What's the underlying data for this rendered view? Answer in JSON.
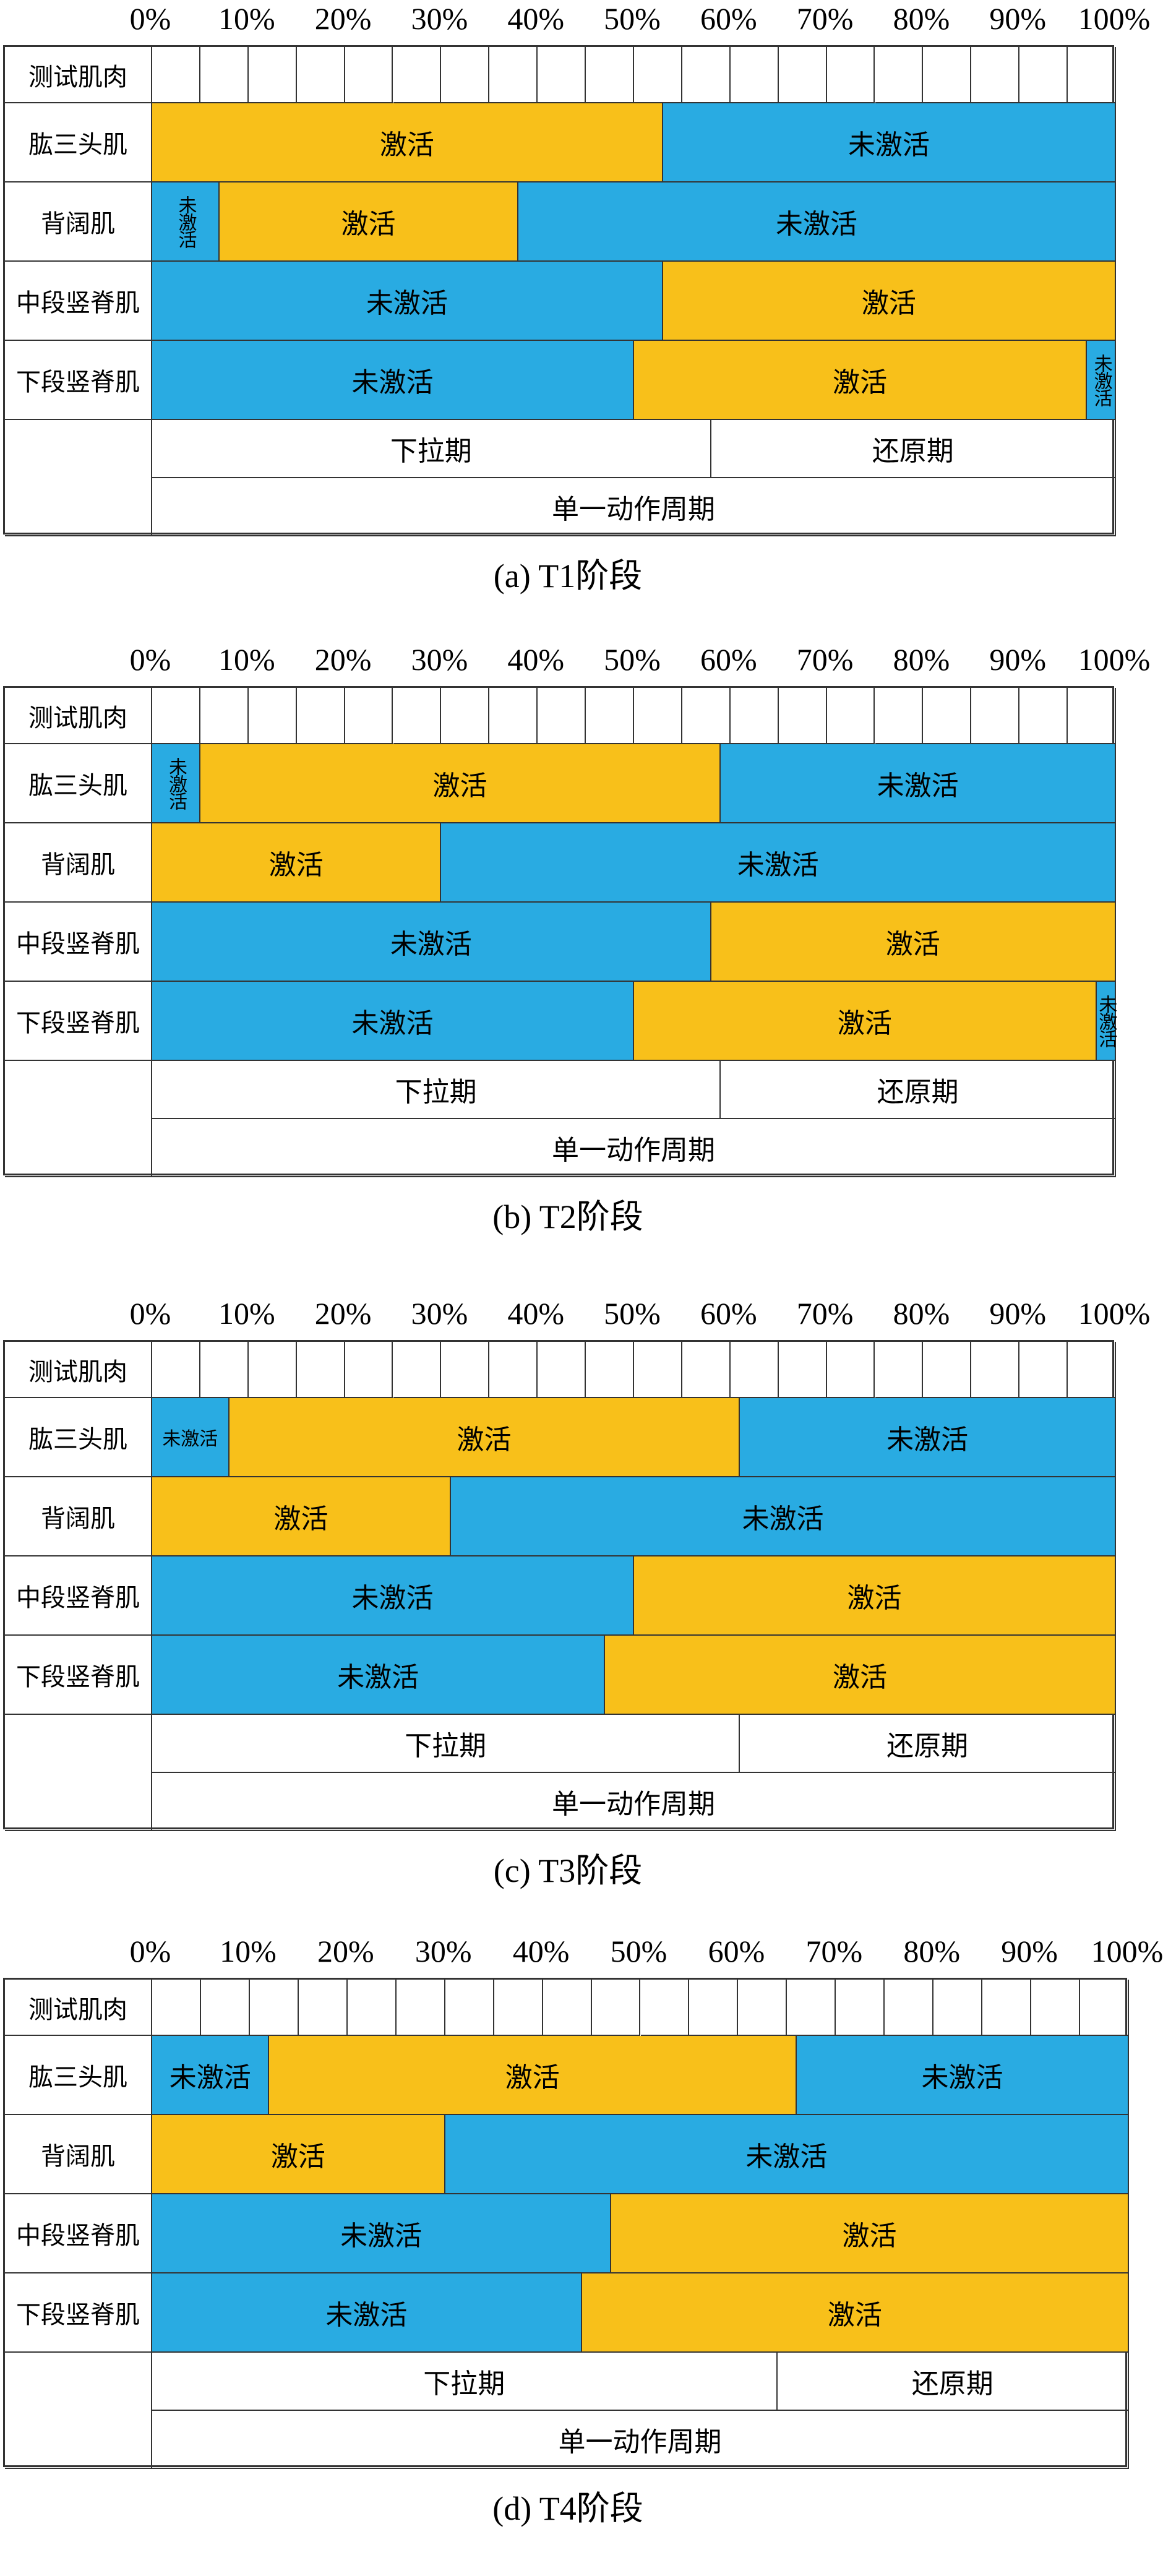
{
  "chart_data": [
    {
      "type": "table",
      "title": "(a) T1阶段",
      "header_label": "测试肌肉",
      "x_ticks": [
        "0%",
        "10%",
        "20%",
        "30%",
        "40%",
        "50%",
        "60%",
        "70%",
        "80%",
        "90%",
        "100%"
      ],
      "rows": [
        {
          "muscle": "肱三头肌",
          "segments": [
            {
              "state": "激活",
              "start": 0,
              "end": 53
            },
            {
              "state": "未激活",
              "start": 53,
              "end": 100
            }
          ]
        },
        {
          "muscle": "背阔肌",
          "segments": [
            {
              "state": "未激活",
              "start": 0,
              "end": 7
            },
            {
              "state": "激活",
              "start": 7,
              "end": 38
            },
            {
              "state": "未激活",
              "start": 38,
              "end": 100
            }
          ]
        },
        {
          "muscle": "中段竖脊肌",
          "segments": [
            {
              "state": "未激活",
              "start": 0,
              "end": 53
            },
            {
              "state": "激活",
              "start": 53,
              "end": 100
            }
          ]
        },
        {
          "muscle": "下段竖脊肌",
          "segments": [
            {
              "state": "未激活",
              "start": 0,
              "end": 50
            },
            {
              "state": "激活",
              "start": 50,
              "end": 97
            },
            {
              "state": "未激活",
              "start": 97,
              "end": 100
            }
          ]
        }
      ],
      "phases": [
        {
          "label": "下拉期",
          "start": 0,
          "end": 58
        },
        {
          "label": "还原期",
          "start": 58,
          "end": 100
        }
      ],
      "cycle_label": "单一动作周期"
    },
    {
      "type": "table",
      "title": "(b) T2阶段",
      "header_label": "测试肌肉",
      "x_ticks": [
        "0%",
        "10%",
        "20%",
        "30%",
        "40%",
        "50%",
        "60%",
        "70%",
        "80%",
        "90%",
        "100%"
      ],
      "rows": [
        {
          "muscle": "肱三头肌",
          "segments": [
            {
              "state": "未激活",
              "start": 0,
              "end": 5
            },
            {
              "state": "激活",
              "start": 5,
              "end": 59
            },
            {
              "state": "未激活",
              "start": 59,
              "end": 100
            }
          ]
        },
        {
          "muscle": "背阔肌",
          "segments": [
            {
              "state": "激活",
              "start": 0,
              "end": 30
            },
            {
              "state": "未激活",
              "start": 30,
              "end": 100
            }
          ]
        },
        {
          "muscle": "中段竖脊肌",
          "segments": [
            {
              "state": "未激活",
              "start": 0,
              "end": 58
            },
            {
              "state": "激活",
              "start": 58,
              "end": 100
            }
          ]
        },
        {
          "muscle": "下段竖脊肌",
          "segments": [
            {
              "state": "未激活",
              "start": 0,
              "end": 50
            },
            {
              "state": "激活",
              "start": 50,
              "end": 98
            },
            {
              "state": "未激活",
              "start": 98,
              "end": 100
            }
          ]
        }
      ],
      "phases": [
        {
          "label": "下拉期",
          "start": 0,
          "end": 59
        },
        {
          "label": "还原期",
          "start": 59,
          "end": 100
        }
      ],
      "cycle_label": "单一动作周期"
    },
    {
      "type": "table",
      "title": "(c) T3阶段",
      "header_label": "测试肌肉",
      "x_ticks": [
        "0%",
        "10%",
        "20%",
        "30%",
        "40%",
        "50%",
        "60%",
        "70%",
        "80%",
        "90%",
        "100%"
      ],
      "rows": [
        {
          "muscle": "肱三头肌",
          "segments": [
            {
              "state": "未激活",
              "start": 0,
              "end": 8
            },
            {
              "state": "激活",
              "start": 8,
              "end": 61
            },
            {
              "state": "未激活",
              "start": 61,
              "end": 100
            }
          ]
        },
        {
          "muscle": "背阔肌",
          "segments": [
            {
              "state": "激活",
              "start": 0,
              "end": 31
            },
            {
              "state": "未激活",
              "start": 31,
              "end": 100
            }
          ]
        },
        {
          "muscle": "中段竖脊肌",
          "segments": [
            {
              "state": "未激活",
              "start": 0,
              "end": 50
            },
            {
              "state": "激活",
              "start": 50,
              "end": 100
            }
          ]
        },
        {
          "muscle": "下段竖脊肌",
          "segments": [
            {
              "state": "未激活",
              "start": 0,
              "end": 47
            },
            {
              "state": "激活",
              "start": 47,
              "end": 100
            }
          ]
        }
      ],
      "phases": [
        {
          "label": "下拉期",
          "start": 0,
          "end": 61
        },
        {
          "label": "还原期",
          "start": 61,
          "end": 100
        }
      ],
      "cycle_label": "单一动作周期"
    },
    {
      "type": "table",
      "title": "(d) T4阶段",
      "header_label": "测试肌肉",
      "x_ticks": [
        "0%",
        "10%",
        "20%",
        "30%",
        "40%",
        "50%",
        "60%",
        "70%",
        "80%",
        "90%",
        "100%"
      ],
      "rows": [
        {
          "muscle": "肱三头肌",
          "segments": [
            {
              "state": "未激活",
              "start": 0,
              "end": 12
            },
            {
              "state": "激活",
              "start": 12,
              "end": 66
            },
            {
              "state": "未激活",
              "start": 66,
              "end": 100
            }
          ]
        },
        {
          "muscle": "背阔肌",
          "segments": [
            {
              "state": "激活",
              "start": 0,
              "end": 30
            },
            {
              "state": "未激活",
              "start": 30,
              "end": 100
            }
          ]
        },
        {
          "muscle": "中段竖脊肌",
          "segments": [
            {
              "state": "未激活",
              "start": 0,
              "end": 47
            },
            {
              "state": "激活",
              "start": 47,
              "end": 100
            }
          ]
        },
        {
          "muscle": "下段竖脊肌",
          "segments": [
            {
              "state": "未激活",
              "start": 0,
              "end": 44
            },
            {
              "state": "激活",
              "start": 44,
              "end": 100
            }
          ]
        }
      ],
      "phases": [
        {
          "label": "下拉期",
          "start": 0,
          "end": 64
        },
        {
          "label": "还原期",
          "start": 64,
          "end": 100
        }
      ],
      "cycle_label": "单一动作周期"
    }
  ],
  "colors": {
    "激活": "#F8C01A",
    "未激活": "#29ABE2"
  }
}
